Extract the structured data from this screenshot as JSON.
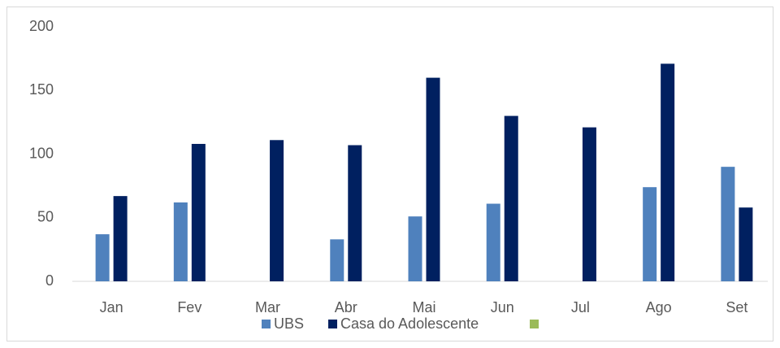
{
  "chart_data": {
    "type": "bar",
    "categories": [
      "Jan",
      "Fev",
      "Mar",
      "Abr",
      "Mai",
      "Jun",
      "Jul",
      "Ago",
      "Set"
    ],
    "series": [
      {
        "name": "UBS",
        "color": "#4f81bd",
        "values": [
          37,
          62,
          null,
          33,
          51,
          61,
          null,
          74,
          90
        ]
      },
      {
        "name": "Casa do Adolescente",
        "color": "#002060",
        "values": [
          67,
          108,
          111,
          107,
          160,
          130,
          121,
          171,
          58
        ]
      },
      {
        "color": "#9bbb59"
      }
    ],
    "ylim": [
      0,
      200
    ],
    "yticks": [
      0,
      50,
      100,
      150,
      200
    ],
    "grid": false,
    "legend": "bottom"
  }
}
